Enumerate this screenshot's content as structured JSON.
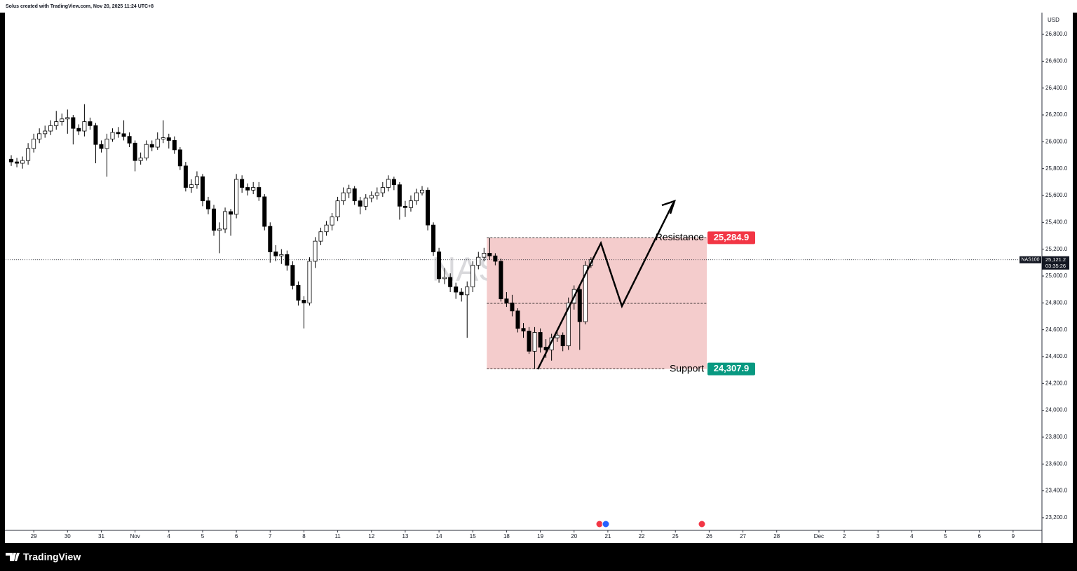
{
  "header": "Solus created with TradingView.com, Nov 20, 2025 11:24 UTC+8",
  "brand": "TradingView",
  "chart_data": {
    "type": "candlestick",
    "title": "NAS100, 4h",
    "symbol": "NAS100",
    "currency": "USD",
    "countdown": "03:35:26",
    "current_price": {
      "value": 25121.2,
      "label": "25,121.2"
    },
    "up_color": "#ffffff",
    "down_color": "#000000",
    "wick_color": "#000000",
    "grid": false,
    "zone_color": "#f4cccc",
    "resistance": {
      "name": "Resistance",
      "value": 25284.9,
      "label": "25,284.9",
      "color": "#f23645"
    },
    "support": {
      "name": "Support",
      "value": 24307.9,
      "label": "24,307.9",
      "color": "#089981"
    },
    "ylim": [
      23111,
      26962
    ],
    "yticks": [
      {
        "value": 23200,
        "label": "23,200.0"
      },
      {
        "value": 23400,
        "label": "23,400.0"
      },
      {
        "value": 23600,
        "label": "23,600.0"
      },
      {
        "value": 23800,
        "label": "23,800.0"
      },
      {
        "value": 24000,
        "label": "24,000.0"
      },
      {
        "value": 24200,
        "label": "24,200.0"
      },
      {
        "value": 24400,
        "label": "24,400.0"
      },
      {
        "value": 24600,
        "label": "24,600.0"
      },
      {
        "value": 24800,
        "label": "24,800.0"
      },
      {
        "value": 25000,
        "label": "25,000.0"
      },
      {
        "value": 25200,
        "label": "25,200.0"
      },
      {
        "value": 25400,
        "label": "25,400.0"
      },
      {
        "value": 25600,
        "label": "25,600.0"
      },
      {
        "value": 25800,
        "label": "25,800.0"
      },
      {
        "value": 26000,
        "label": "26,000.0"
      },
      {
        "value": 26200,
        "label": "26,200.0"
      },
      {
        "value": 26400,
        "label": "26,400.0"
      },
      {
        "value": 26600,
        "label": "26,600.0"
      },
      {
        "value": 26800,
        "label": "26,800.0"
      }
    ],
    "xlim": [
      -1,
      183
    ],
    "xticks": [
      {
        "value": 4,
        "label": "29"
      },
      {
        "value": 10,
        "label": "30"
      },
      {
        "value": 16,
        "label": "31"
      },
      {
        "value": 22,
        "label": "Nov"
      },
      {
        "value": 28,
        "label": "4"
      },
      {
        "value": 34,
        "label": "5"
      },
      {
        "value": 40,
        "label": "6"
      },
      {
        "value": 46,
        "label": "7"
      },
      {
        "value": 52,
        "label": "8"
      },
      {
        "value": 58,
        "label": "11"
      },
      {
        "value": 64,
        "label": "12"
      },
      {
        "value": 70,
        "label": "13"
      },
      {
        "value": 76,
        "label": "14"
      },
      {
        "value": 82,
        "label": "15"
      },
      {
        "value": 88,
        "label": "18"
      },
      {
        "value": 94,
        "label": "19"
      },
      {
        "value": 100,
        "label": "20"
      },
      {
        "value": 106,
        "label": "21"
      },
      {
        "value": 112,
        "label": "22"
      },
      {
        "value": 118,
        "label": "25"
      },
      {
        "value": 124,
        "label": "26"
      },
      {
        "value": 130,
        "label": "27"
      },
      {
        "value": 136,
        "label": "28"
      },
      {
        "value": 143.5,
        "label": "Dec"
      },
      {
        "value": 148,
        "label": "2"
      },
      {
        "value": 154,
        "label": "3"
      },
      {
        "value": 160,
        "label": "4"
      },
      {
        "value": 166,
        "label": "5"
      },
      {
        "value": 172,
        "label": "6"
      },
      {
        "value": 178,
        "label": "9"
      }
    ],
    "ohlc": [
      [
        25870,
        25900,
        25820,
        25850
      ],
      [
        25850,
        25880,
        25810,
        25840
      ],
      [
        25840,
        25890,
        25800,
        25860
      ],
      [
        25860,
        25990,
        25830,
        25950
      ],
      [
        25950,
        26060,
        25920,
        26020
      ],
      [
        26020,
        26100,
        25990,
        26060
      ],
      [
        26060,
        26120,
        26030,
        26080
      ],
      [
        26080,
        26160,
        26050,
        26120
      ],
      [
        26120,
        26230,
        26090,
        26150
      ],
      [
        26150,
        26210,
        26120,
        26170
      ],
      [
        26170,
        26240,
        26060,
        26180
      ],
      [
        26180,
        26200,
        25980,
        26100
      ],
      [
        26100,
        26130,
        26050,
        26080
      ],
      [
        26080,
        26280,
        26040,
        26150
      ],
      [
        26150,
        26180,
        26090,
        26120
      ],
      [
        26120,
        26140,
        25840,
        25980
      ],
      [
        25980,
        26010,
        25920,
        25950
      ],
      [
        25950,
        26060,
        25740,
        26020
      ],
      [
        26020,
        26100,
        26000,
        26070
      ],
      [
        26070,
        26110,
        26030,
        26060
      ],
      [
        26060,
        26160,
        26010,
        26040
      ],
      [
        26040,
        26070,
        25960,
        25990
      ],
      [
        25990,
        26010,
        25780,
        25860
      ],
      [
        25860,
        25920,
        25830,
        25880
      ],
      [
        25880,
        26010,
        25860,
        25980
      ],
      [
        25980,
        26010,
        25930,
        25960
      ],
      [
        25960,
        26070,
        25940,
        26020
      ],
      [
        26020,
        26160,
        25990,
        26030
      ],
      [
        26030,
        26060,
        25950,
        26010
      ],
      [
        26010,
        26040,
        25910,
        25940
      ],
      [
        25940,
        25960,
        25790,
        25820
      ],
      [
        25820,
        25850,
        25630,
        25660
      ],
      [
        25660,
        25720,
        25620,
        25680
      ],
      [
        25680,
        25780,
        25650,
        25740
      ],
      [
        25740,
        25760,
        25520,
        25560
      ],
      [
        25560,
        25590,
        25460,
        25500
      ],
      [
        25500,
        25530,
        25300,
        25340
      ],
      [
        25340,
        25400,
        25170,
        25350
      ],
      [
        25350,
        25510,
        25320,
        25480
      ],
      [
        25480,
        25500,
        25300,
        25460
      ],
      [
        25460,
        25760,
        25430,
        25720
      ],
      [
        25720,
        25750,
        25620,
        25660
      ],
      [
        25660,
        25690,
        25600,
        25640
      ],
      [
        25640,
        25700,
        25610,
        25660
      ],
      [
        25660,
        25700,
        25560,
        25590
      ],
      [
        25590,
        25610,
        25340,
        25370
      ],
      [
        25370,
        25400,
        25100,
        25180
      ],
      [
        25180,
        25230,
        25110,
        25150
      ],
      [
        25150,
        25200,
        25090,
        25160
      ],
      [
        25160,
        25190,
        25040,
        25080
      ],
      [
        25080,
        25110,
        24900,
        24930
      ],
      [
        24930,
        24960,
        24780,
        24820
      ],
      [
        24820,
        24850,
        24610,
        24800
      ],
      [
        24800,
        25140,
        24780,
        25110
      ],
      [
        25110,
        25290,
        25060,
        25260
      ],
      [
        25260,
        25360,
        25230,
        25330
      ],
      [
        25330,
        25410,
        25300,
        25380
      ],
      [
        25380,
        25470,
        25340,
        25440
      ],
      [
        25440,
        25590,
        25410,
        25560
      ],
      [
        25560,
        25660,
        25530,
        25620
      ],
      [
        25620,
        25680,
        25580,
        25650
      ],
      [
        25650,
        25670,
        25530,
        25560
      ],
      [
        25560,
        25590,
        25460,
        25520
      ],
      [
        25520,
        25610,
        25490,
        25580
      ],
      [
        25580,
        25630,
        25550,
        25600
      ],
      [
        25600,
        25660,
        25570,
        25620
      ],
      [
        25620,
        25700,
        25590,
        25660
      ],
      [
        25660,
        25750,
        25630,
        25720
      ],
      [
        25720,
        25740,
        25640,
        25680
      ],
      [
        25680,
        25700,
        25420,
        25520
      ],
      [
        25520,
        25560,
        25440,
        25510
      ],
      [
        25510,
        25600,
        25480,
        25560
      ],
      [
        25560,
        25650,
        25530,
        25620
      ],
      [
        25620,
        25670,
        25600,
        25640
      ],
      [
        25640,
        25660,
        25340,
        25380
      ],
      [
        25380,
        25400,
        25150,
        25180
      ],
      [
        25180,
        25210,
        24950,
        24980
      ],
      [
        24980,
        25060,
        24940,
        24990
      ],
      [
        24990,
        25020,
        24880,
        24920
      ],
      [
        24920,
        24950,
        24830,
        24880
      ],
      [
        24880,
        24910,
        24810,
        24860
      ],
      [
        24860,
        24960,
        24540,
        24920
      ],
      [
        24920,
        25110,
        24880,
        25080
      ],
      [
        25080,
        25180,
        25050,
        25140
      ],
      [
        25140,
        25210,
        25110,
        25170
      ],
      [
        25170,
        25285,
        25120,
        25150
      ],
      [
        25150,
        25170,
        25080,
        25110
      ],
      [
        25110,
        25130,
        24810,
        24830
      ],
      [
        24830,
        24880,
        24770,
        24800
      ],
      [
        24800,
        24860,
        24700,
        24740
      ],
      [
        24740,
        24760,
        24580,
        24610
      ],
      [
        24610,
        24650,
        24540,
        24590
      ],
      [
        24590,
        24620,
        24420,
        24440
      ],
      [
        24440,
        24620,
        24308,
        24580
      ],
      [
        24580,
        24610,
        24430,
        24470
      ],
      [
        24470,
        24530,
        24390,
        24450
      ],
      [
        24450,
        24570,
        24370,
        24540
      ],
      [
        24540,
        24600,
        24510,
        24560
      ],
      [
        24560,
        24580,
        24440,
        24480
      ],
      [
        24480,
        24840,
        24450,
        24800
      ],
      [
        24800,
        24930,
        24750,
        24900
      ],
      [
        24900,
        24920,
        24450,
        24660
      ],
      [
        24660,
        25110,
        24640,
        25080
      ],
      [
        25080,
        25140,
        25060,
        25121.2
      ]
    ]
  }
}
